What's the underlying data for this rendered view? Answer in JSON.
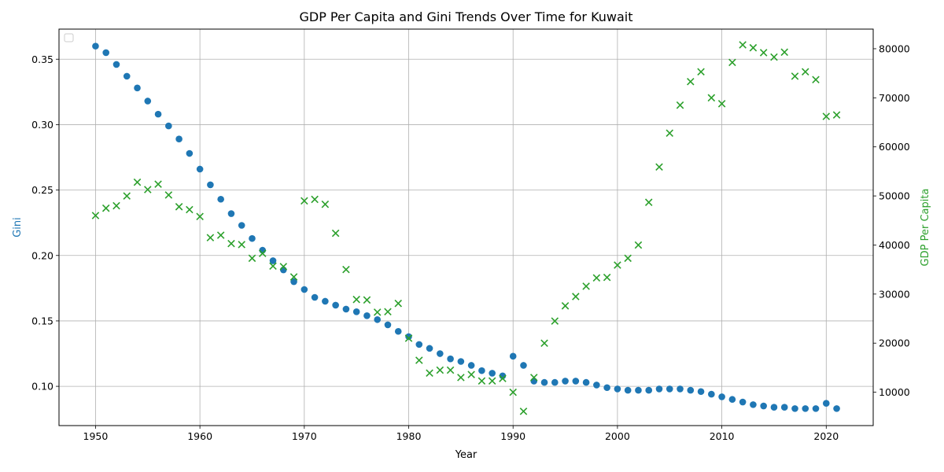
{
  "chart_data": {
    "type": "scatter",
    "title": "GDP Per Capita and Gini Trends Over Time for Kuwait",
    "xlabel": "Year",
    "ylabel_left": "Gini",
    "ylabel_right": "GDP Per Capita",
    "xlim": [
      1946.5,
      2024.5
    ],
    "ylim_left": [
      0.07,
      0.373
    ],
    "ylim_right": [
      3200,
      84000
    ],
    "x_ticks": [
      1950,
      1960,
      1970,
      1980,
      1990,
      2000,
      2010,
      2020
    ],
    "y_ticks_left": [
      0.1,
      0.15,
      0.2,
      0.25,
      0.3,
      0.35
    ],
    "y_ticks_left_labels": [
      "0.10",
      "0.15",
      "0.20",
      "0.25",
      "0.30",
      "0.35"
    ],
    "y_ticks_right": [
      10000,
      20000,
      30000,
      40000,
      50000,
      60000,
      70000,
      80000
    ],
    "y_ticks_right_labels": [
      "10000",
      "20000",
      "30000",
      "40000",
      "50000",
      "60000",
      "70000",
      "80000"
    ],
    "grid": true,
    "legend": "top-left (empty)",
    "colors": {
      "gini": "#1f77b4",
      "gdp": "#2ca02c"
    },
    "series": [
      {
        "axis": "left",
        "marker": "circle",
        "x": [
          1950,
          1951,
          1952,
          1953,
          1954,
          1955,
          1956,
          1957,
          1958,
          1959,
          1960,
          1961,
          1962,
          1963,
          1964,
          1965,
          1966,
          1967,
          1968,
          1969,
          1970,
          1971,
          1972,
          1973,
          1974,
          1975,
          1976,
          1977,
          1978,
          1979,
          1980,
          1981,
          1982,
          1983,
          1984,
          1985,
          1986,
          1987,
          1988,
          1989,
          1990,
          1991,
          1992,
          1993,
          1994,
          1995,
          1996,
          1997,
          1998,
          1999,
          2000,
          2001,
          2002,
          2003,
          2004,
          2005,
          2006,
          2007,
          2008,
          2009,
          2010,
          2011,
          2012,
          2013,
          2014,
          2015,
          2016,
          2017,
          2018,
          2019,
          2020,
          2021
        ],
        "values": [
          0.36,
          0.355,
          0.346,
          0.337,
          0.328,
          0.318,
          0.308,
          0.299,
          0.289,
          0.278,
          0.266,
          0.254,
          0.243,
          0.232,
          0.223,
          0.213,
          0.204,
          0.196,
          0.189,
          0.18,
          0.174,
          0.168,
          0.165,
          0.162,
          0.159,
          0.157,
          0.154,
          0.151,
          0.147,
          0.142,
          0.138,
          0.132,
          0.129,
          0.125,
          0.121,
          0.119,
          0.116,
          0.112,
          0.11,
          0.108,
          0.123,
          0.116,
          0.104,
          0.103,
          0.103,
          0.104,
          0.104,
          0.103,
          0.101,
          0.099,
          0.098,
          0.097,
          0.097,
          0.097,
          0.098,
          0.098,
          0.098,
          0.097,
          0.096,
          0.094,
          0.092,
          0.09,
          0.088,
          0.086,
          0.085,
          0.084,
          0.084,
          0.083,
          0.083,
          0.083,
          0.087,
          0.083
        ]
      },
      {
        "axis": "right",
        "marker": "x",
        "x": [
          1950,
          1951,
          1952,
          1953,
          1954,
          1955,
          1956,
          1957,
          1958,
          1959,
          1960,
          1961,
          1962,
          1963,
          1964,
          1965,
          1966,
          1967,
          1968,
          1969,
          1970,
          1971,
          1972,
          1973,
          1974,
          1975,
          1976,
          1977,
          1978,
          1979,
          1980,
          1981,
          1982,
          1983,
          1984,
          1985,
          1986,
          1987,
          1988,
          1989,
          1990,
          1991,
          1992,
          1993,
          1994,
          1995,
          1996,
          1997,
          1998,
          1999,
          2000,
          2001,
          2002,
          2003,
          2004,
          2005,
          2006,
          2007,
          2008,
          2009,
          2010,
          2011,
          2012,
          2013,
          2014,
          2015,
          2016,
          2017,
          2018,
          2019,
          2020,
          2021
        ],
        "values": [
          46000,
          47500,
          48000,
          50000,
          52800,
          51300,
          52400,
          50200,
          47800,
          47200,
          45800,
          41500,
          42000,
          40300,
          40100,
          37300,
          38300,
          35700,
          35600,
          33500,
          49000,
          49300,
          48300,
          42400,
          35000,
          28900,
          28800,
          26300,
          26400,
          28100,
          21000,
          16500,
          13900,
          14500,
          14500,
          13000,
          13600,
          12300,
          12300,
          12800,
          10000,
          6100,
          13000,
          20000,
          24500,
          27600,
          29500,
          31600,
          33300,
          33400,
          35900,
          37300,
          40000,
          48700,
          55900,
          62800,
          68500,
          73300,
          75300,
          70000,
          68800,
          77200,
          80800,
          80200,
          79200,
          78300,
          79300,
          74400,
          75300,
          73700,
          66200,
          66500
        ]
      }
    ]
  }
}
